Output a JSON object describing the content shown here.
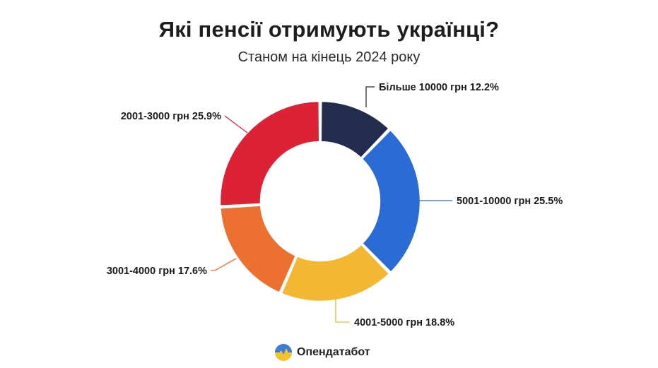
{
  "header": {
    "title": "Які пенсії отримують українці?",
    "subtitle": "Станом на кінець 2024 року"
  },
  "brand": {
    "name": "Опендатабот",
    "icon": "opendatabot-logo-icon",
    "colors": [
      "#3b7ddd",
      "#f5c22b"
    ]
  },
  "chart_data": {
    "type": "pie",
    "donut": true,
    "categories": [
      "Більше 10000 грн",
      "5001-10000 грн",
      "4001-5000 грн",
      "3001-4000 грн",
      "2001-3000 грн"
    ],
    "values": [
      12.2,
      25.5,
      18.8,
      17.6,
      25.9
    ],
    "labels": [
      "Більше 10000 грн 12.2%",
      "5001-10000 грн 25.5%",
      "4001-5000 грн 18.8%",
      "3001-4000 грн 17.6%",
      "2001-3000 грн 25.9%"
    ],
    "colors": [
      "#232c4c",
      "#2a6bd6",
      "#f4b733",
      "#ec7030",
      "#dd2236"
    ],
    "title": "Які пенсії отримують українці?",
    "subtitle": "Станом на кінець 2024 року"
  }
}
